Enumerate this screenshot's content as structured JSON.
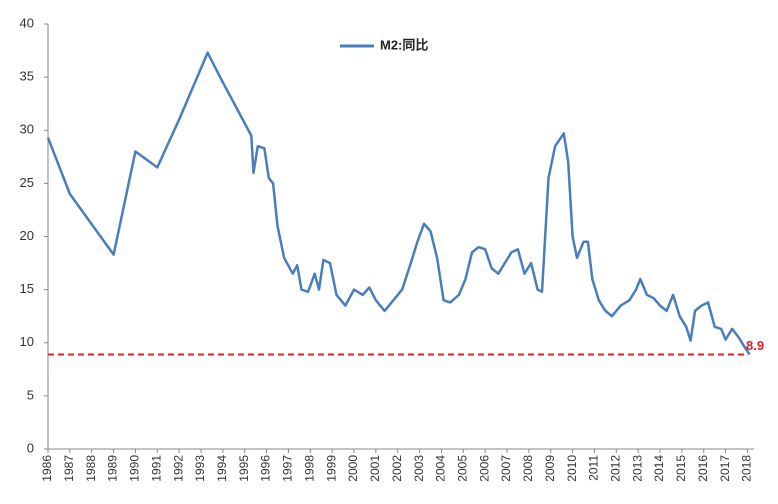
{
  "chart_data": {
    "type": "line",
    "series": [
      {
        "name": "M2:同比",
        "color": "#4a7ebb",
        "values": [
          29.3,
          24,
          18.3,
          28,
          26.5,
          31,
          37.3,
          34.5,
          29.5,
          26,
          28.5,
          28.3,
          25.5,
          25,
          21,
          18,
          16.5,
          17.3,
          15,
          14.8,
          16.5,
          15,
          17.8,
          17.5,
          14.5,
          13.5,
          15,
          14.5,
          15.2,
          14,
          13,
          14,
          15,
          17.5,
          19.5,
          21.2,
          20.5,
          18,
          14,
          13.8,
          14.5,
          16,
          18.5,
          19,
          18.8,
          17,
          16.5,
          17.5,
          18.5,
          18.8,
          16.5,
          17.5,
          15,
          14.8,
          25.5,
          28.5,
          29.7,
          27,
          20,
          18,
          19.5,
          19.5,
          16,
          14,
          13,
          12.5,
          13.5,
          14,
          15,
          16,
          14.5,
          14.2,
          13.5,
          13,
          14.5,
          12.5,
          11.5,
          10.2,
          13,
          13.5,
          13.8,
          11.5,
          11.3,
          10.3,
          11.3,
          10.5,
          9.5,
          8.9
        ]
      }
    ],
    "x": [
      1986,
      1987,
      1989,
      1990,
      1991,
      1992,
      1993.3,
      1994,
      1995.3,
      1995.4,
      1995.6,
      1995.9,
      1996.1,
      1996.3,
      1996.5,
      1996.8,
      1997.2,
      1997.4,
      1997.6,
      1997.9,
      1998.2,
      1998.4,
      1998.6,
      1998.9,
      1999.2,
      1999.6,
      2000,
      2000.4,
      2000.7,
      2001,
      2001.4,
      2001.8,
      2002.2,
      2002.6,
      2002.9,
      2003.2,
      2003.5,
      2003.8,
      2004.1,
      2004.4,
      2004.8,
      2005.1,
      2005.4,
      2005.7,
      2006,
      2006.3,
      2006.6,
      2006.9,
      2007.2,
      2007.5,
      2007.8,
      2008.1,
      2008.4,
      2008.6,
      2008.9,
      2009.2,
      2009.6,
      2009.8,
      2010,
      2010.2,
      2010.5,
      2010.7,
      2010.9,
      2011.2,
      2011.5,
      2011.8,
      2012.2,
      2012.6,
      2012.9,
      2013.1,
      2013.4,
      2013.7,
      2014,
      2014.3,
      2014.6,
      2014.9,
      2015.2,
      2015.4,
      2015.6,
      2015.9,
      2016.2,
      2016.5,
      2016.8,
      2017,
      2017.3,
      2017.6,
      2017.9,
      2018.1
    ],
    "xlim": [
      1986,
      2018.3
    ],
    "xticks": [
      1986,
      1987,
      1988,
      1989,
      1990,
      1991,
      1992,
      1993,
      1994,
      1995,
      1996,
      1997,
      1998,
      1999,
      2000,
      2001,
      2002,
      2003,
      2004,
      2005,
      2006,
      2007,
      2008,
      2009,
      2010,
      2011,
      2012,
      2013,
      2014,
      2015,
      2016,
      2017,
      2018
    ],
    "ylim": [
      0,
      40
    ],
    "yticks": [
      0,
      5,
      10,
      15,
      20,
      25,
      30,
      35,
      40
    ],
    "reference_line": {
      "value": 8.9,
      "color": "#e0202a"
    },
    "legend": "top-center"
  }
}
